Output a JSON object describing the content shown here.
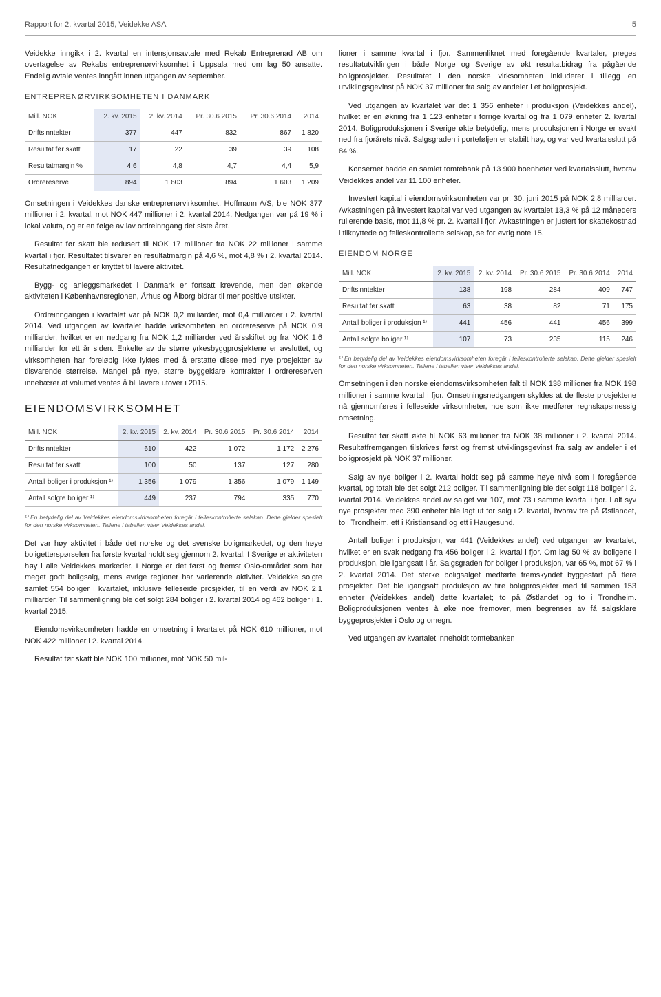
{
  "header": {
    "title": "Rapport for 2. kvartal 2015, Veidekke ASA",
    "page_num": "5"
  },
  "left": {
    "intro": "Veidekke inngikk i 2. kvartal en intensjonsavtale med Rekab Entreprenad AB om overtagelse av Rekabs entreprenørvirksomhet i Uppsala med om lag 50 ansatte. Endelig avtale ventes inngått innen utgangen av september.",
    "heading_dk": "ENTREPRENØRVIRKSOMHETEN I DANMARK",
    "table_dk": {
      "col_label": "Mill. NOK",
      "cols": [
        "2. kv. 2015",
        "2. kv. 2014",
        "Pr. 30.6 2015",
        "Pr. 30.6 2014",
        "2014"
      ],
      "rows": [
        {
          "label": "Driftsinntekter",
          "vals": [
            "377",
            "447",
            "832",
            "867",
            "1 820"
          ]
        },
        {
          "label": "Resultat før skatt",
          "vals": [
            "17",
            "22",
            "39",
            "39",
            "108"
          ]
        },
        {
          "label": "Resultatmargin %",
          "vals": [
            "4,6",
            "4,8",
            "4,7",
            "4,4",
            "5,9"
          ]
        },
        {
          "label": "Ordrereserve",
          "vals": [
            "894",
            "1 603",
            "894",
            "1 603",
            "1 209"
          ]
        }
      ]
    },
    "p_dk_1": "Omsetningen i Veidekkes danske entreprenørvirksomhet, Hoffmann A/S, ble NOK 377 millioner i 2. kvartal, mot NOK 447 millioner i 2. kvartal 2014. Nedgangen var på 19 % i lokal valuta, og er en følge av lav ordreinngang det siste året.",
    "p_dk_2": "Resultat før skatt ble redusert til NOK 17 millioner fra NOK 22 millioner i samme kvartal i fjor. Resultatet tilsvarer en resultatmargin på 4,6 %, mot 4,8 % i 2. kvartal 2014. Resultatnedgangen er knyttet til lavere aktivitet.",
    "p_dk_3": "Bygg- og anleggsmarkedet i Danmark er fortsatt krevende, men den økende aktiviteten i Københavnsregionen, Århus og Ålborg bidrar til mer positive utsikter.",
    "p_dk_4": "Ordreinngangen i kvartalet var på NOK 0,2 milliarder, mot 0,4 milliarder i 2. kvartal 2014. Ved utgangen av kvartalet hadde virksomheten en ordrereserve på NOK 0,9 milliarder, hvilket er en nedgang fra NOK 1,2 milliarder ved årsskiftet og fra NOK 1,6 milliarder for ett år siden. Enkelte av de større yrkesbyggprosjektene er avsluttet, og virksomheten har foreløpig ikke lyktes med å erstatte disse med nye prosjekter av tilsvarende størrelse. Mangel på nye, større byggeklare kontrakter i ordrereserven innebærer at volumet ventes å bli lavere utover i 2015.",
    "heading_eiendom": "EIENDOMSVIRKSOMHET",
    "table_eiendom": {
      "col_label": "Mill. NOK",
      "cols": [
        "2. kv. 2015",
        "2. kv. 2014",
        "Pr. 30.6 2015",
        "Pr. 30.6 2014",
        "2014"
      ],
      "rows": [
        {
          "label": "Driftsinntekter",
          "vals": [
            "610",
            "422",
            "1 072",
            "1 172",
            "2 276"
          ]
        },
        {
          "label": "Resultat før skatt",
          "vals": [
            "100",
            "50",
            "137",
            "127",
            "280"
          ]
        },
        {
          "label": "Antall boliger i produksjon ¹⁾",
          "vals": [
            "1 356",
            "1 079",
            "1 356",
            "1 079",
            "1 149"
          ]
        },
        {
          "label": "Antall solgte boliger ¹⁾",
          "vals": [
            "449",
            "237",
            "794",
            "335",
            "770"
          ]
        }
      ]
    },
    "footnote_eiendom": "¹⁾ En betydelig del av Veidekkes eiendomsvirksomheten foregår i felleskontrollerte selskap. Dette gjelder spesielt for den norske virksomheten. Tallene i tabellen viser Veidekkes andel.",
    "p_ei_1": "Det var høy aktivitet i både det norske og det svenske boligmarkedet, og den høye boligetterspørselen fra første kvartal holdt seg gjennom 2. kvartal. I Sverige er aktiviteten høy i alle Veidekkes markeder. I Norge er det først og fremst Oslo-området som har meget godt boligsalg, mens øvrige regioner har varierende aktivitet. Veidekke solgte samlet 554 boliger i kvartalet, inklusive felleseide prosjekter, til en verdi av NOK 2,1 milliarder. Til sammenligning ble det solgt 284 boliger i 2. kvartal 2014 og 462 boliger i 1. kvartal 2015.",
    "p_ei_2": "Eiendomsvirksomheten hadde en omsetning i kvartalet på NOK 610 millioner, mot NOK 422 millioner i 2. kvartal 2014.",
    "p_ei_3": "Resultat før skatt ble NOK 100 millioner, mot NOK 50 mil-"
  },
  "right": {
    "p_top_1": "lioner i samme kvartal i fjor. Sammenliknet med foregående kvartaler, preges resultatutviklingen i både Norge og Sverige av økt resultatbidrag fra pågående boligprosjekter. Resultatet i den norske virksomheten inkluderer i tillegg en utviklingsgevinst på NOK 37 millioner fra salg av andeler i et boligprosjekt.",
    "p_top_2": "Ved utgangen av kvartalet var det 1 356 enheter i produksjon (Veidekkes andel), hvilket er en økning fra 1 123 enheter i forrige kvartal og fra 1 079 enheter 2. kvartal 2014. Boligproduksjonen i Sverige økte betydelig, mens produksjonen i Norge er svakt ned fra fjorårets nivå. Salgsgraden i porteføljen er stabilt høy, og var ved kvartalsslutt på 84 %.",
    "p_top_3": "Konsernet hadde en samlet tomtebank på 13 900 boenheter ved kvartalsslutt, hvorav Veidekkes andel var 11 100 enheter.",
    "p_top_4": "Investert kapital i eiendomsvirksomheten var pr. 30. juni 2015 på NOK 2,8 milliarder. Avkastningen på investert kapital var ved utgangen av kvartalet 13,3 % på 12 måneders rullerende basis, mot 11,8 % pr. 2. kvartal i fjor. Avkastningen er justert for skattekostnad i tilknyttede og felleskontrollerte selskap, se for øvrig note 15.",
    "heading_no": "EIENDOM NORGE",
    "table_no": {
      "col_label": "Mill. NOK",
      "cols": [
        "2. kv. 2015",
        "2. kv. 2014",
        "Pr. 30.6 2015",
        "Pr. 30.6 2014",
        "2014"
      ],
      "rows": [
        {
          "label": "Driftsinntekter",
          "vals": [
            "138",
            "198",
            "284",
            "409",
            "747"
          ]
        },
        {
          "label": "Resultat før skatt",
          "vals": [
            "63",
            "38",
            "82",
            "71",
            "175"
          ]
        },
        {
          "label": "Antall boliger i produksjon ¹⁾",
          "vals": [
            "441",
            "456",
            "441",
            "456",
            "399"
          ]
        },
        {
          "label": "Antall solgte boliger ¹⁾",
          "vals": [
            "107",
            "73",
            "235",
            "115",
            "246"
          ]
        }
      ]
    },
    "footnote_no": "¹⁾ En betydelig del av Veidekkes eiendomsvirksomheten foregår i felleskontrollerte selskap. Dette gjelder spesielt for den norske virksomheten. Tallene i tabellen viser Veidekkes andel.",
    "p_no_1": "Omsetningen i den norske eiendomsvirksomheten falt til NOK 138 millioner fra NOK 198 millioner i samme kvartal i fjor. Omsetningsnedgangen skyldes at de fleste prosjektene nå gjennomføres i felleseide virksomheter, noe som ikke medfører regnskapsmessig omsetning.",
    "p_no_2": "Resultat før skatt økte til NOK 63 millioner fra NOK 38 millioner i 2. kvartal 2014. Resultatfremgangen tilskrives først og fremst utviklingsgevinst fra salg av andeler i et boligprosjekt på NOK 37 millioner.",
    "p_no_3": "Salg av nye boliger i 2. kvartal holdt seg på samme høye nivå som i foregående kvartal, og totalt ble det solgt 212 boliger. Til sammenligning ble det solgt 118 boliger i 2. kvartal 2014. Veidekkes andel av salget var 107, mot 73 i samme kvartal i fjor. I alt syv nye prosjekter med 390 enheter ble lagt ut for salg i 2. kvartal, hvorav tre på Østlandet, to i Trondheim, ett i Kristiansand og ett i Haugesund.",
    "p_no_4": "Antall boliger i produksjon, var 441 (Veidekkes andel) ved utgangen av kvartalet, hvilket er en svak nedgang fra 456 boliger i 2. kvartal i fjor. Om lag 50 % av boligene i produksjon, ble igangsatt i år. Salgsgraden for boliger i produksjon, var 65 %, mot 67 % i 2. kvartal 2014. Det sterke boligsalget medførte fremskyndet byggestart på flere prosjekter. Det ble igangsatt produksjon av fire boligprosjekter med til sammen 153 enheter (Veidekkes andel) dette kvartalet; to på Østlandet og to i Trondheim. Boligproduksjonen ventes å øke noe fremover, men begrenses av få salgsklare byggeprosjekter i Oslo og omegn.",
    "p_no_5": "Ved utgangen av kvartalet inneholdt tomtebanken"
  }
}
